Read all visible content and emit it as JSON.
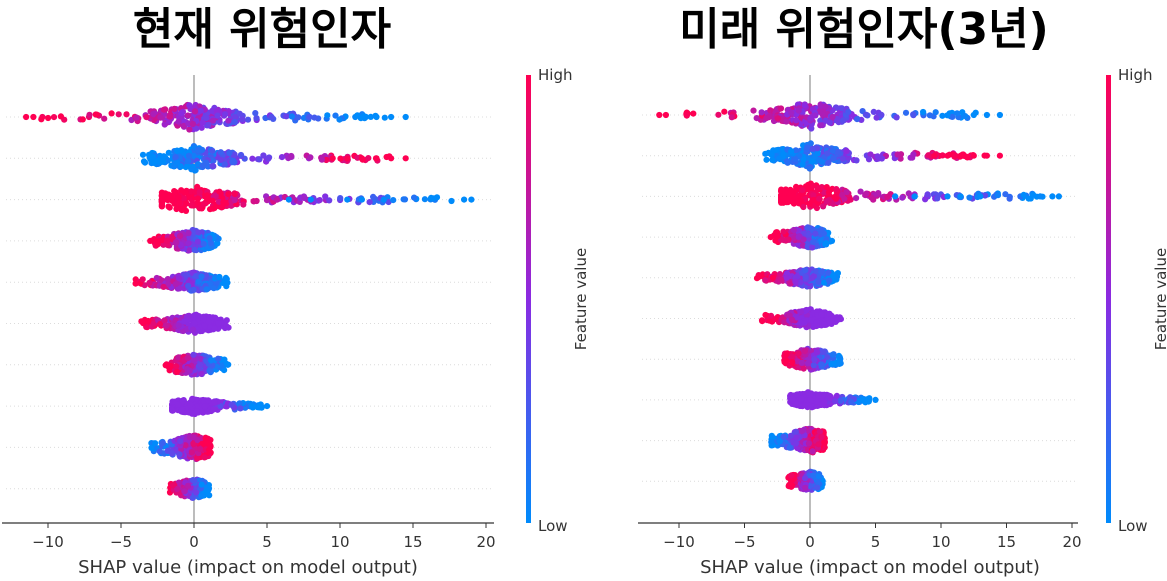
{
  "chart_data": [
    {
      "type": "scatter",
      "title": "현재 위험인자",
      "xlabel": "SHAP value (impact on model output)",
      "xlim": [
        -13,
        20.5
      ],
      "xticks": [
        -10,
        -5,
        0,
        5,
        10,
        15,
        20
      ],
      "colorbar": {
        "title": "Feature value",
        "high_label": "High",
        "low_label": "Low",
        "high_color": "#ff0052",
        "low_color": "#008bfb"
      },
      "rows": [
        {
          "range": [
            -11.8,
            14.5
          ],
          "left_color": "high",
          "right_color": "low",
          "spread": 0.9,
          "outliers": [
            -11.5,
            -11,
            12.5,
            13.5,
            14.5
          ]
        },
        {
          "range": [
            -4.5,
            14.5
          ],
          "left_color": "low",
          "right_color": "high",
          "spread": 0.8,
          "outliers": [
            9.5,
            10.5,
            11.5,
            12.5,
            13.5,
            14.5
          ]
        },
        {
          "range": [
            -2.2,
            19
          ],
          "left_color": "high",
          "right_color": "low",
          "spread": 0.9,
          "outliers": [
            6.5,
            8,
            10.5,
            11.5,
            13,
            18.5,
            19
          ]
        },
        {
          "range": [
            -3,
            2
          ],
          "left_color": "high",
          "right_color": "low",
          "spread": 0.7,
          "outliers": [
            -3
          ]
        },
        {
          "range": [
            -4.5,
            2.7
          ],
          "left_color": "high",
          "right_color": "low",
          "spread": 0.6,
          "outliers": []
        },
        {
          "range": [
            -4,
            2.7
          ],
          "left_color": "high",
          "right_color": "mix",
          "spread": 0.6,
          "outliers": []
        },
        {
          "range": [
            -2.3,
            2.6
          ],
          "left_color": "high",
          "right_color": "low",
          "spread": 0.7,
          "outliers": []
        },
        {
          "range": [
            -1.5,
            5
          ],
          "left_color": "mix",
          "right_color": "low",
          "spread": 0.5,
          "outliers": [
            4,
            4.5,
            5
          ]
        },
        {
          "range": [
            -3.2,
            1.4
          ],
          "left_color": "low",
          "right_color": "high",
          "spread": 0.8,
          "outliers": []
        },
        {
          "range": [
            -1.8,
            1.2
          ],
          "left_color": "high",
          "right_color": "low",
          "spread": 0.6,
          "outliers": []
        }
      ]
    },
    {
      "type": "scatter",
      "title": "미래 위험인자(3년)",
      "xlabel": "SHAP value (impact on model output)",
      "xlim": [
        -13,
        20.5
      ],
      "xticks": [
        -10,
        -5,
        0,
        5,
        10,
        15,
        20
      ],
      "colorbar": {
        "title": "Feature value",
        "high_label": "High",
        "low_label": "Low",
        "high_color": "#ff0052",
        "low_color": "#008bfb"
      },
      "rows": [
        {
          "range": [
            -11.8,
            14.5
          ],
          "left_color": "high",
          "right_color": "low",
          "spread": 0.9,
          "outliers": [
            -11.5,
            -11,
            12.5,
            13.5,
            14.5
          ]
        },
        {
          "range": [
            -4.5,
            14.5
          ],
          "left_color": "low",
          "right_color": "high",
          "spread": 0.8,
          "outliers": [
            9.5,
            10.5,
            11.5,
            12.5,
            13.5,
            14.5
          ]
        },
        {
          "range": [
            -2.2,
            19
          ],
          "left_color": "high",
          "right_color": "low",
          "spread": 0.9,
          "outliers": [
            6.5,
            8,
            10.5,
            11.5,
            13,
            18.5,
            19
          ]
        },
        {
          "range": [
            -3,
            2
          ],
          "left_color": "high",
          "right_color": "low",
          "spread": 0.7,
          "outliers": [
            -3
          ]
        },
        {
          "range": [
            -4.5,
            2.7
          ],
          "left_color": "high",
          "right_color": "low",
          "spread": 0.6,
          "outliers": []
        },
        {
          "range": [
            -4,
            2.7
          ],
          "left_color": "high",
          "right_color": "mix",
          "spread": 0.6,
          "outliers": []
        },
        {
          "range": [
            -2.3,
            2.6
          ],
          "left_color": "high",
          "right_color": "low",
          "spread": 0.7,
          "outliers": []
        },
        {
          "range": [
            -1.5,
            5
          ],
          "left_color": "mix",
          "right_color": "low",
          "spread": 0.5,
          "outliers": [
            4,
            4.5,
            5
          ]
        },
        {
          "range": [
            -3.2,
            1.4
          ],
          "left_color": "low",
          "right_color": "high",
          "spread": 0.8,
          "outliers": []
        },
        {
          "range": [
            -1.8,
            1.2
          ],
          "left_color": "high",
          "right_color": "low",
          "spread": 0.6,
          "outliers": []
        }
      ]
    }
  ]
}
